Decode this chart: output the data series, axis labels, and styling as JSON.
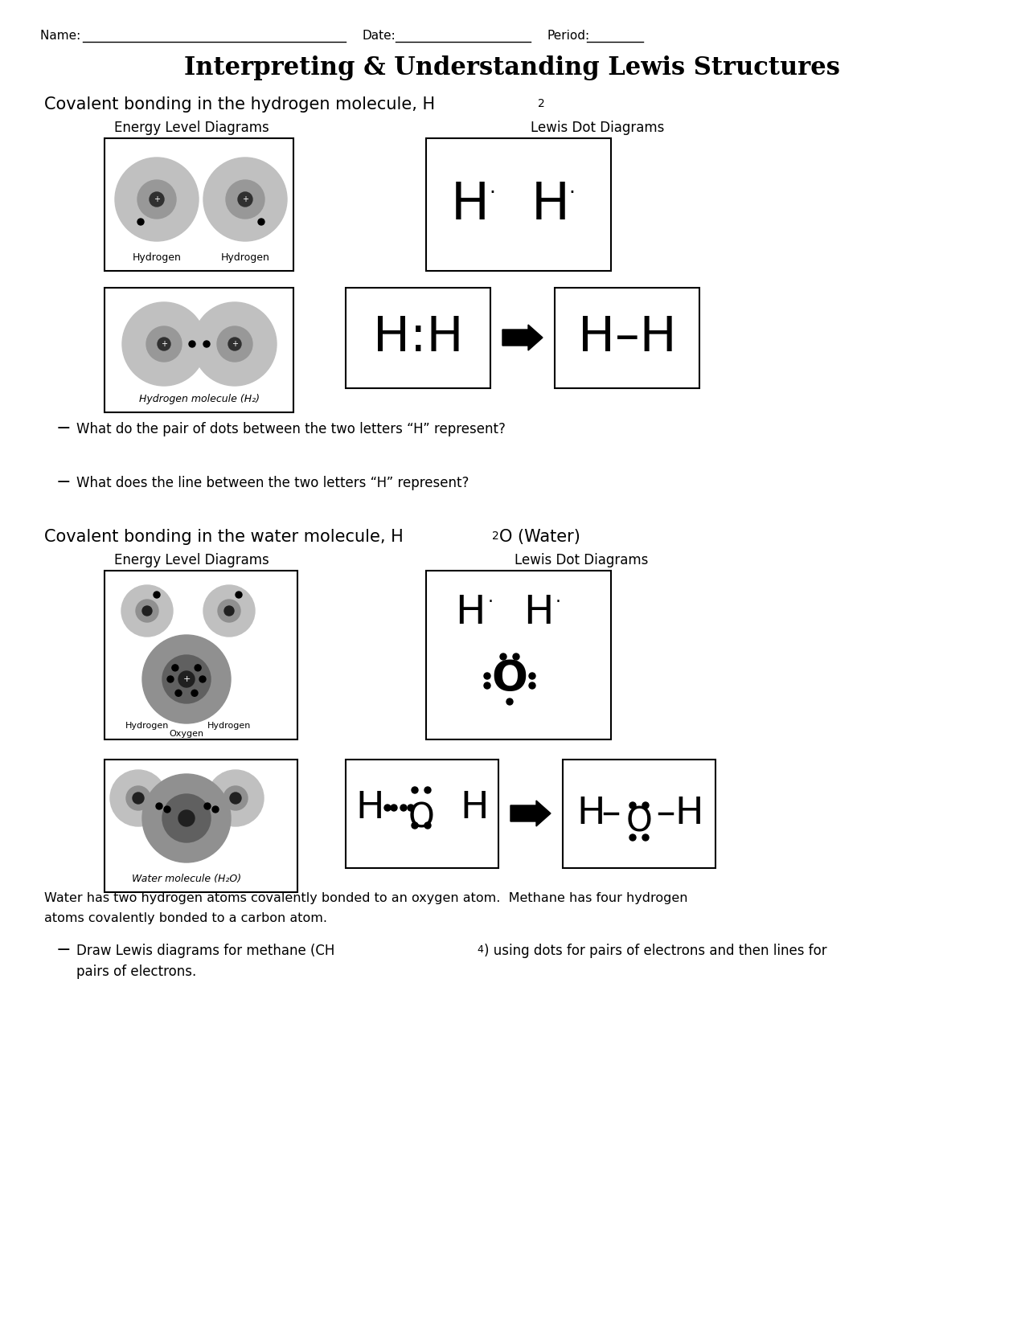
{
  "title": "Interpreting & Understanding Lewis Structures",
  "energy_label": "Energy Level Diagrams",
  "lewis_label": "Lewis Dot Diagrams",
  "q1": "What do the pair of dots between the two letters “H” represent?",
  "q2": "What does the line between the two letters “H” represent?",
  "water_text1": "Water has two hydrogen atoms covalently bonded to an oxygen atom.  Methane has four hydrogen",
  "water_text2": "atoms covalently bonded to a carbon atom.",
  "q3a": "Draw Lewis diagrams for methane (CH",
  "q3b": ") using dots for pairs of electrons and then lines for",
  "q3c": "pairs of electrons.",
  "bg_color": "#ffffff"
}
